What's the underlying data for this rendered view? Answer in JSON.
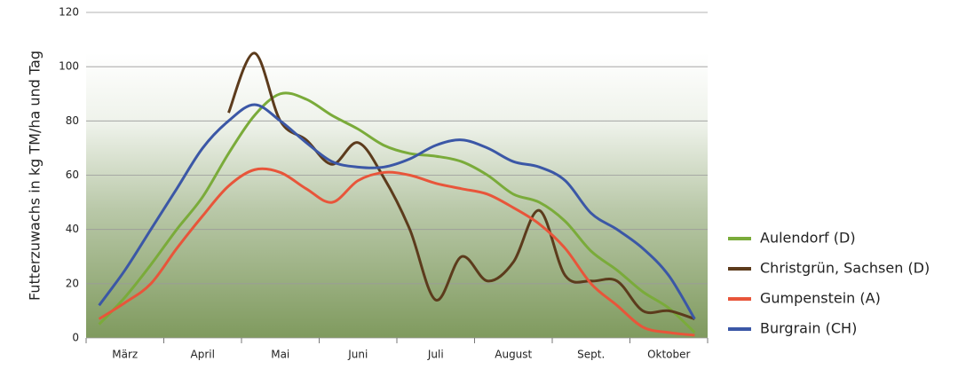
{
  "chart_data": {
    "type": "line",
    "y_label": "Futterzuwachs in kg TM/ha und Tag",
    "categories": [
      null,
      "März",
      null,
      null,
      "April",
      null,
      null,
      "Mai",
      null,
      null,
      "Juni",
      null,
      null,
      "Juli",
      null,
      null,
      "August",
      null,
      null,
      "Sept.",
      null,
      null,
      "Oktober",
      null
    ],
    "ylim": [
      0,
      120
    ],
    "yticks": [
      0,
      20,
      40,
      60,
      80,
      100,
      120
    ],
    "grid": true,
    "series": [
      {
        "name": "Aulendorf (D)",
        "color": "#7aab3a",
        "values": [
          5,
          15,
          27,
          40,
          52,
          68,
          82,
          90,
          88,
          82,
          77,
          71,
          68,
          67,
          65,
          60,
          53,
          50,
          43,
          32,
          25,
          17,
          11,
          2
        ]
      },
      {
        "name": "Christgrün, Sachsen (D)",
        "color": "#5c3b1c",
        "values": [
          null,
          null,
          null,
          null,
          null,
          83,
          105,
          80,
          73,
          64,
          72,
          59,
          40,
          14,
          30,
          21,
          28,
          47,
          23,
          21,
          21,
          10,
          10,
          7
        ]
      },
      {
        "name": "Gumpenstein (A)",
        "color": "#e8553a",
        "values": [
          7,
          13,
          20,
          33,
          45,
          56,
          62,
          61,
          55,
          50,
          58,
          61,
          60,
          57,
          55,
          53,
          48,
          42,
          33,
          20,
          12,
          4,
          2,
          1
        ]
      },
      {
        "name": "Burgrain (CH)",
        "color": "#3b57a6",
        "values": [
          12,
          25,
          40,
          55,
          70,
          80,
          86,
          80,
          72,
          65,
          63,
          63,
          66,
          71,
          73,
          70,
          65,
          63,
          58,
          46,
          40,
          33,
          23,
          7
        ]
      }
    ]
  }
}
